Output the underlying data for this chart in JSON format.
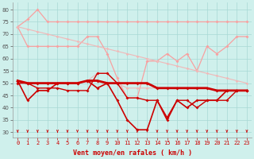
{
  "x": [
    0,
    1,
    2,
    3,
    4,
    5,
    6,
    7,
    8,
    9,
    10,
    11,
    12,
    13,
    14,
    15,
    16,
    17,
    18,
    19,
    20,
    21,
    22,
    23
  ],
  "background_color": "#cff0ec",
  "grid_color": "#a8d8d4",
  "xlabel": "Vent moyen/en rafales ( km/h )",
  "ylim": [
    28,
    83
  ],
  "yticks": [
    30,
    35,
    40,
    45,
    50,
    55,
    60,
    65,
    70,
    75,
    80
  ],
  "series": [
    {
      "color": "#f8a0a0",
      "linewidth": 0.9,
      "markersize": 2.0,
      "values": [
        73,
        76,
        80,
        75,
        75,
        75,
        75,
        75,
        75,
        75,
        75,
        75,
        75,
        75,
        75,
        75,
        75,
        75,
        75,
        75,
        75,
        75,
        75,
        75
      ]
    },
    {
      "color": "#f8a0a0",
      "linewidth": 0.9,
      "markersize": 2.0,
      "values": [
        73,
        65,
        65,
        65,
        65,
        65,
        65,
        69,
        69,
        62,
        52,
        44,
        44,
        59,
        59,
        62,
        59,
        62,
        55,
        65,
        62,
        65,
        69,
        69
      ]
    },
    {
      "color": "#f0b8b8",
      "linewidth": 0.8,
      "markersize": 1.8,
      "values": [
        73,
        72,
        71,
        70,
        69,
        68,
        67,
        66,
        65,
        64,
        63,
        62,
        61,
        60,
        59,
        58,
        57,
        56,
        55,
        54,
        53,
        52,
        51,
        50
      ]
    },
    {
      "color": "#f0b8b8",
      "linewidth": 0.8,
      "markersize": 1.8,
      "values": [
        51,
        50,
        50,
        50,
        50,
        50,
        50,
        51,
        54,
        54,
        50,
        48,
        48,
        48,
        48,
        48,
        48,
        48,
        48,
        48,
        47,
        47,
        47,
        47
      ]
    },
    {
      "color": "#cc0000",
      "linewidth": 1.2,
      "markersize": 2.0,
      "values": [
        51,
        43,
        47,
        47,
        50,
        50,
        50,
        51,
        48,
        50,
        43,
        35,
        31,
        31,
        43,
        35,
        43,
        40,
        43,
        43,
        43,
        47,
        47,
        47
      ]
    },
    {
      "color": "#cc0000",
      "linewidth": 2.0,
      "markersize": 2.0,
      "values": [
        51,
        50,
        50,
        50,
        50,
        50,
        50,
        51,
        51,
        50,
        50,
        50,
        50,
        50,
        48,
        48,
        48,
        48,
        48,
        48,
        47,
        47,
        47,
        47
      ]
    },
    {
      "color": "#cc0000",
      "linewidth": 1.0,
      "markersize": 2.0,
      "values": [
        50,
        50,
        48,
        48,
        48,
        47,
        47,
        47,
        54,
        54,
        50,
        44,
        44,
        43,
        43,
        36,
        43,
        43,
        40,
        43,
        43,
        43,
        47,
        47
      ]
    }
  ],
  "arrow_color": "#cc0000",
  "tick_fontsize": 5,
  "axis_fontsize": 6,
  "tick_color_x": "#cc0000",
  "tick_color_y": "#555555"
}
